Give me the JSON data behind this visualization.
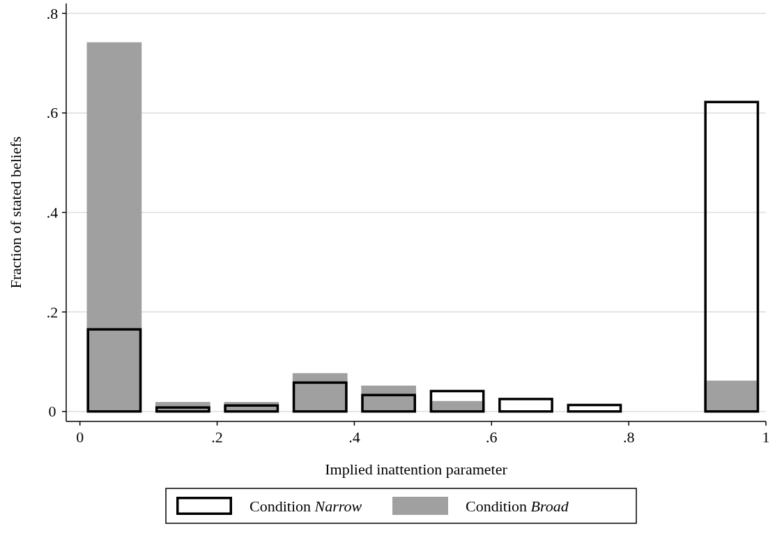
{
  "chart_data": {
    "type": "histogram",
    "xlabel": "Implied inattention parameter",
    "ylabel": "Fraction of stated beliefs",
    "bins": [
      0,
      0.1,
      0.2,
      0.3,
      0.4,
      0.5,
      0.6,
      0.7,
      0.8,
      0.9,
      1
    ],
    "series": [
      {
        "name": "Condition Narrow",
        "color": "#000000",
        "values": [
          0.165,
          0.008,
          0.012,
          0.058,
          0.033,
          0.041,
          0.025,
          0.013,
          0,
          0.622
        ]
      },
      {
        "name": "Condition Broad",
        "color": "#a0a0a0",
        "values": [
          0.742,
          0.019,
          0.019,
          0.077,
          0.052,
          0.021,
          0,
          0,
          0,
          0.062
        ]
      }
    ],
    "xlim": [
      -0.02,
      1
    ],
    "ylim": [
      -0.02,
      0.82
    ],
    "xticks": [
      {
        "value": 0,
        "label": "0"
      },
      {
        "value": 0.2,
        "label": ".2"
      },
      {
        "value": 0.4,
        "label": ".4"
      },
      {
        "value": 0.6,
        "label": ".6"
      },
      {
        "value": 0.8,
        "label": ".8"
      },
      {
        "value": 1,
        "label": "1"
      }
    ],
    "yticks": [
      {
        "value": 0,
        "label": "0"
      },
      {
        "value": 0.2,
        "label": ".2"
      },
      {
        "value": 0.4,
        "label": ".4"
      },
      {
        "value": 0.6,
        "label": ".6"
      },
      {
        "value": 0.8,
        "label": ".8"
      }
    ],
    "grid": "y",
    "legend": "bottom"
  }
}
